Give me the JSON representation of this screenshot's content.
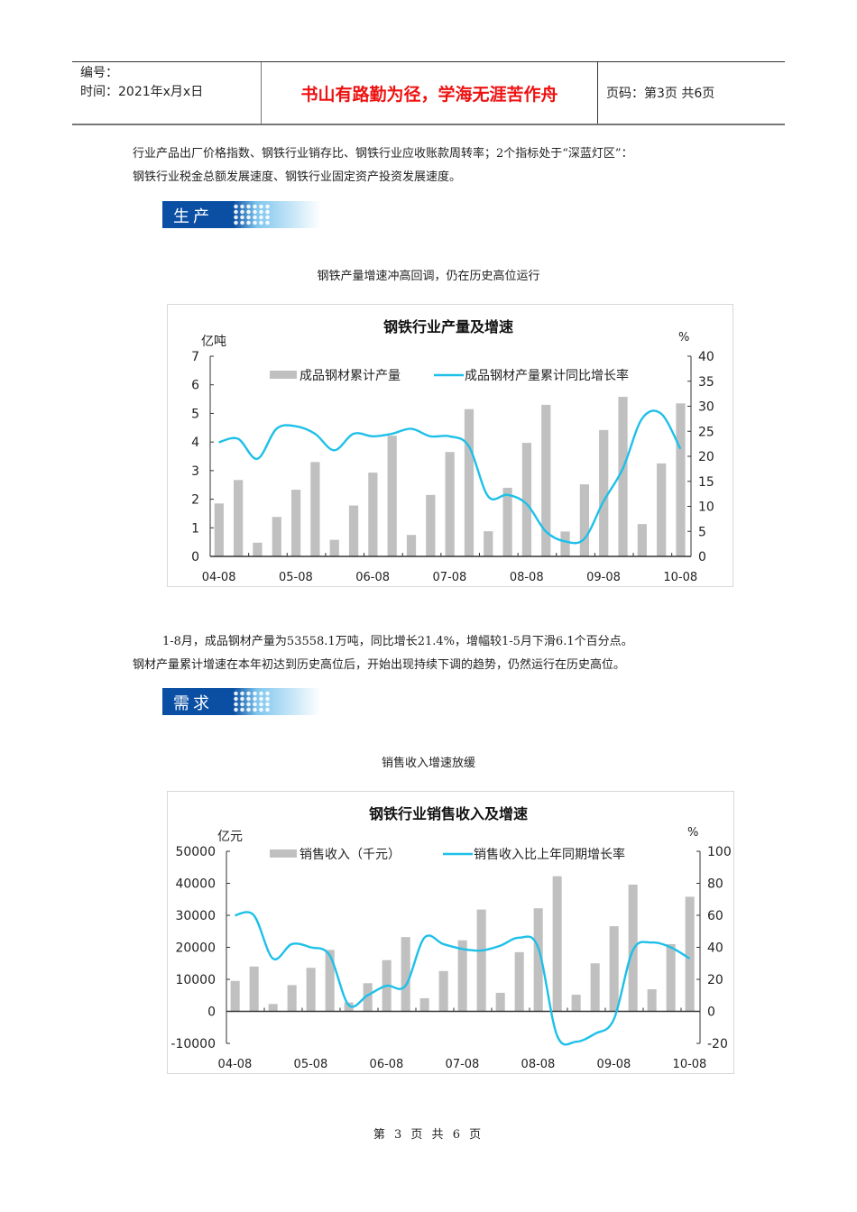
{
  "header": {
    "number_label": "编号：",
    "date_label": "时间：2021年x月x日",
    "motto": "书山有路勤为径，学海无涯苦作舟",
    "page_label": "页码：第3页  共6页"
  },
  "intro": {
    "line1": "行业产品出厂价格指数、钢铁行业销存比、钢铁行业应收账款周转率；2个指标处于“深蓝灯区”：",
    "line2": "钢铁行业税金总额发展速度、钢铁行业固定资产投资发展速度。"
  },
  "section1": {
    "banner": "生产",
    "caption": "钢铁产量增速冲高回调，仍在历史高位运行"
  },
  "section1_text": {
    "line1": "1-8月，成品钢材产量为53558.1万吨，同比增长21.4%，增幅较1-5月下滑6.1个百分点。",
    "line2": "钢材产量累计增速在本年初达到历史高位后，开始出现持续下调的趋势，仍然运行在历史高位。"
  },
  "section2": {
    "banner": "需求",
    "caption": "销售收入增速放缓"
  },
  "footer": {
    "text": "第 3 页 共 6 页"
  },
  "colors": {
    "bar": "#c0c0c0",
    "line": "#1ec0e8",
    "banner": "#0a4fa3",
    "motto": "#e11111"
  },
  "chart_data": [
    {
      "type": "bar",
      "title": "钢铁行业产量及增速",
      "ylabel": "亿吨",
      "y2label": "%",
      "ylim": [
        0,
        7
      ],
      "y2lim": [
        0,
        40
      ],
      "yticks": [
        "0",
        "1",
        "2",
        "3",
        "4",
        "5",
        "6",
        "7"
      ],
      "y2ticks": [
        "0",
        "5",
        "10",
        "15",
        "20",
        "25",
        "30",
        "35",
        "40"
      ],
      "xtick_labels": [
        "04-08",
        "05-08",
        "06-08",
        "07-08",
        "08-08",
        "09-08",
        "10-08"
      ],
      "legend": [
        "成品钢材累计产量",
        "成品钢材产量累计同比增长率"
      ],
      "series": [
        {
          "name": "成品钢材累计产量",
          "type": "bar",
          "values": [
            1.85,
            2.67,
            0.48,
            1.38,
            2.33,
            3.3,
            0.58,
            1.78,
            2.93,
            4.22,
            0.75,
            2.15,
            3.65,
            5.15,
            0.88,
            2.4,
            3.97,
            5.3,
            0.87,
            2.52,
            4.42,
            5.58,
            1.13,
            3.25,
            5.35
          ]
        },
        {
          "name": "成品钢材产量累计同比增长率",
          "type": "line",
          "values": [
            22.8,
            23.5,
            19.5,
            25.5,
            26.0,
            24.5,
            21.2,
            24.5,
            24.0,
            24.5,
            25.5,
            24.0,
            24.0,
            22.0,
            12.0,
            12.3,
            10.5,
            5.0,
            3.0,
            3.5,
            11.0,
            17.5,
            27.5,
            28.5,
            21.5
          ]
        }
      ]
    },
    {
      "type": "bar",
      "title": "钢铁行业销售收入及增速",
      "ylabel": "亿元",
      "y2label": "%",
      "ylim": [
        -10000,
        50000
      ],
      "y2lim": [
        -20,
        100
      ],
      "yticks": [
        "-10000",
        "0",
        "10000",
        "20000",
        "30000",
        "40000",
        "50000"
      ],
      "y2ticks": [
        "-20",
        "0",
        "20",
        "40",
        "60",
        "80",
        "100"
      ],
      "xtick_labels": [
        "04-08",
        "05-08",
        "06-08",
        "07-08",
        "08-08",
        "09-08",
        "10-08"
      ],
      "legend": [
        "销售收入（千元）",
        "销售收入比上年同期增长率"
      ],
      "series": [
        {
          "name": "销售收入（千元）",
          "type": "bar",
          "values": [
            9500,
            14000,
            2300,
            8200,
            13600,
            19200,
            2800,
            8800,
            16000,
            23200,
            4100,
            12600,
            22200,
            31800,
            5800,
            18500,
            32200,
            42200,
            5200,
            15000,
            26600,
            39600,
            6900,
            21000,
            35800
          ]
        },
        {
          "name": "销售收入比上年同期增长率",
          "type": "line",
          "values": [
            60,
            60,
            33,
            42,
            40,
            35,
            4,
            10,
            16,
            16,
            46,
            42,
            39,
            38,
            41,
            46,
            40,
            -15,
            -19,
            -14,
            -5,
            38,
            43,
            40,
            33
          ]
        }
      ]
    }
  ]
}
